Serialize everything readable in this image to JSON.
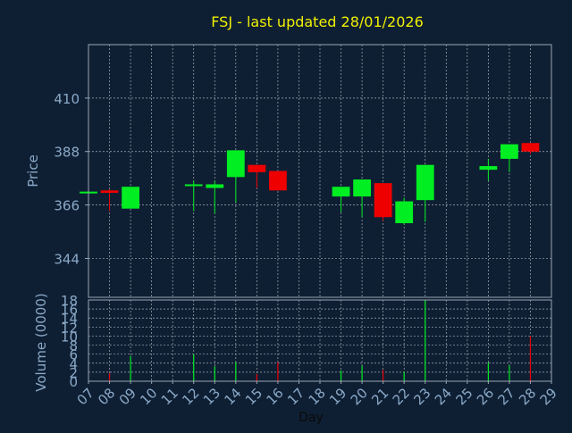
{
  "colors": {
    "background": "#0f1f33",
    "grid": "#c8ced6",
    "frame": "#9aa6b4",
    "axis_text": "#8aa9c8",
    "title": "#f0f000",
    "up": "#00ee22",
    "down": "#ee0000"
  },
  "chart_data": [
    {
      "type": "candlestick",
      "title": "FSJ - last updated 28/01/2026",
      "xlabel": "Day",
      "ylabel": "Price",
      "ylim": [
        328,
        432
      ],
      "yticks": [
        344,
        366,
        388,
        410
      ],
      "grid": true,
      "x": [
        "07",
        "08",
        "09",
        "10",
        "11",
        "12",
        "13",
        "14",
        "15",
        "16",
        "17",
        "18",
        "19",
        "20",
        "21",
        "22",
        "23",
        "24",
        "25",
        "26",
        "27",
        "28",
        "29"
      ],
      "candles": [
        {
          "day": "07",
          "open": 371.5,
          "close": 371.5,
          "high": 371.5,
          "low": 371.5
        },
        {
          "day": "08",
          "open": 372.0,
          "close": 371.0,
          "high": 372.5,
          "low": 363.5
        },
        {
          "day": "09",
          "open": 364.5,
          "close": 373.5,
          "high": 373.5,
          "low": 364.5
        },
        {
          "day": "12",
          "open": 374.0,
          "close": 374.5,
          "high": 376.0,
          "low": 363.5
        },
        {
          "day": "13",
          "open": 373.0,
          "close": 374.5,
          "high": 376.0,
          "low": 362.5
        },
        {
          "day": "14",
          "open": 377.5,
          "close": 388.5,
          "high": 388.5,
          "low": 367.0
        },
        {
          "day": "15",
          "open": 382.5,
          "close": 379.5,
          "high": 382.5,
          "low": 373.0
        },
        {
          "day": "16",
          "open": 380.0,
          "close": 372.0,
          "high": 380.0,
          "low": 372.0
        },
        {
          "day": "19",
          "open": 369.5,
          "close": 373.5,
          "high": 373.5,
          "low": 363.0
        },
        {
          "day": "20",
          "open": 369.5,
          "close": 376.5,
          "high": 376.5,
          "low": 361.0
        },
        {
          "day": "21",
          "open": 375.0,
          "close": 361.0,
          "high": 375.0,
          "low": 359.5
        },
        {
          "day": "22",
          "open": 358.5,
          "close": 367.5,
          "high": 369.0,
          "low": 358.0
        },
        {
          "day": "23",
          "open": 368.0,
          "close": 382.5,
          "high": 382.5,
          "low": 359.0
        },
        {
          "day": "26",
          "open": 380.5,
          "close": 382.0,
          "high": 385.0,
          "low": 376.0
        },
        {
          "day": "27",
          "open": 385.0,
          "close": 391.0,
          "high": 391.0,
          "low": 379.5
        },
        {
          "day": "28",
          "open": 391.5,
          "close": 388.0,
          "high": 391.5,
          "low": 387.0
        }
      ]
    },
    {
      "type": "bar",
      "xlabel": "Day",
      "ylabel": "Volume (0000)",
      "ylim": [
        0,
        18
      ],
      "yticks": [
        0,
        2,
        4,
        6,
        8,
        10,
        12,
        14,
        16,
        18
      ],
      "grid": true,
      "bars": [
        {
          "day": "08",
          "value": 1.8,
          "dir": "down"
        },
        {
          "day": "09",
          "value": 5.6,
          "dir": "up"
        },
        {
          "day": "12",
          "value": 6.0,
          "dir": "up"
        },
        {
          "day": "13",
          "value": 3.3,
          "dir": "up"
        },
        {
          "day": "14",
          "value": 4.2,
          "dir": "up"
        },
        {
          "day": "15",
          "value": 1.6,
          "dir": "down"
        },
        {
          "day": "16",
          "value": 4.2,
          "dir": "down"
        },
        {
          "day": "19",
          "value": 2.4,
          "dir": "up"
        },
        {
          "day": "20",
          "value": 3.4,
          "dir": "up"
        },
        {
          "day": "21",
          "value": 2.5,
          "dir": "down"
        },
        {
          "day": "22",
          "value": 2.1,
          "dir": "up"
        },
        {
          "day": "23",
          "value": 18.0,
          "dir": "up"
        },
        {
          "day": "26",
          "value": 4.2,
          "dir": "up"
        },
        {
          "day": "27",
          "value": 3.5,
          "dir": "up"
        },
        {
          "day": "28",
          "value": 10.0,
          "dir": "down"
        }
      ]
    }
  ]
}
